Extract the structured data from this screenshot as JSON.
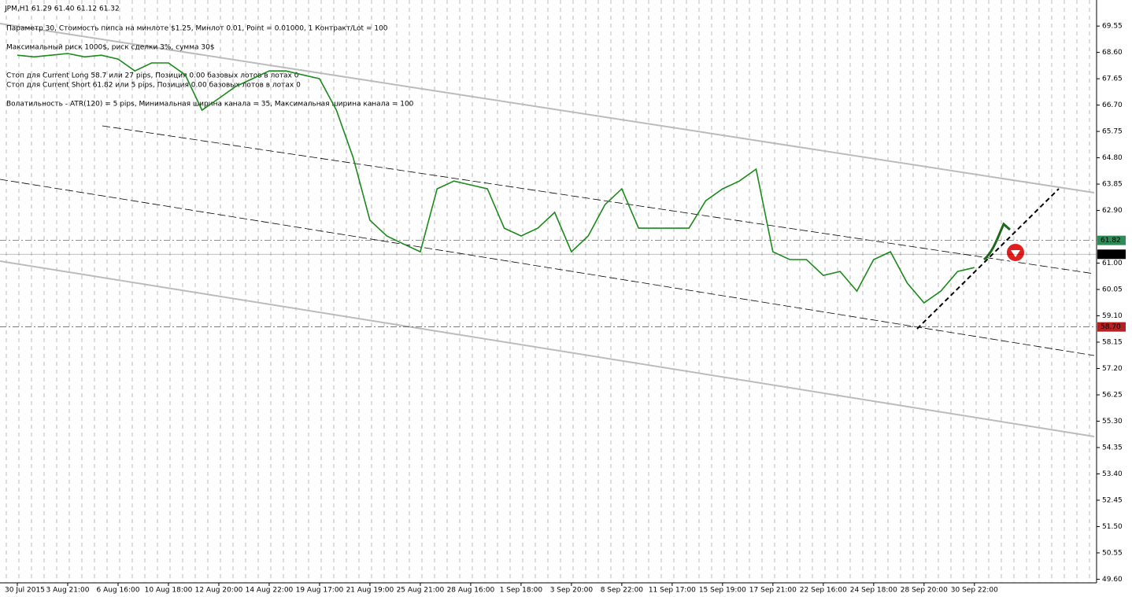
{
  "chart_data": {
    "type": "line",
    "title": "JPM,H1  61.29 61.40 61.12 61.32",
    "annotations": [
      "Параметр 30,  Стоимость пипса на минлоте  $1.25,   Минлот 0.01,  Point = 0.01000,  1 Контракт/Lot = 100",
      "Максимальный риск 1000$, риск сделки 3%, сумма 30$",
      "Стоп для Current Long  58.7 или  27 pips,  Позиция 0.00 базовых лотов в лотах 0",
      "Стоп для Current Short 61.82  или  5 pips,  Позиция 0.00 базовых лотов в лотах 0",
      "Волатильность - ATR(120) = 5 pips,  Минимальная ширина канала = 35,  Максимальная ширина канала = 100"
    ],
    "categories": [
      "30 Jul 2015",
      null,
      null,
      "3 Aug 21:00",
      null,
      null,
      "6 Aug 16:00",
      null,
      null,
      "10 Aug 18:00",
      null,
      null,
      "12 Aug 20:00",
      null,
      null,
      "14 Aug 22:00",
      null,
      null,
      "19 Aug 17:00",
      null,
      null,
      "21 Aug 19:00",
      null,
      null,
      "25 Aug 21:00",
      null,
      null,
      "28 Aug 16:00",
      null,
      null,
      "1 Sep 18:00",
      null,
      null,
      "3 Sep 20:00",
      null,
      null,
      "8 Sep 22:00",
      null,
      null,
      "11 Sep 17:00",
      null,
      null,
      "15 Sep 19:00",
      null,
      null,
      "17 Sep 21:00",
      null,
      null,
      "22 Sep 16:00",
      null,
      null,
      "24 Sep 18:00",
      null,
      null,
      "28 Sep 20:00",
      null,
      null,
      "30 Sep 22:00"
    ],
    "series": [
      {
        "name": "JPM",
        "color": "#1a8a1a",
        "values": [
          68.5,
          68.44,
          68.5,
          68.56,
          68.44,
          68.5,
          68.36,
          67.93,
          68.22,
          68.22,
          67.79,
          66.52,
          66.94,
          67.37,
          67.65,
          67.93,
          67.93,
          67.79,
          67.65,
          66.52,
          64.81,
          62.55,
          61.98,
          61.69,
          61.41,
          63.68,
          63.96,
          63.82,
          63.68,
          62.26,
          61.98,
          62.26,
          62.83,
          61.41,
          61.98,
          63.11,
          63.68,
          62.26,
          62.26,
          62.26,
          62.26,
          63.25,
          63.68,
          63.96,
          64.39,
          61.41,
          61.13,
          61.13,
          60.56,
          60.7,
          59.99,
          61.13,
          61.41,
          60.28,
          59.57,
          59.99,
          60.7,
          60.84
        ]
      }
    ],
    "ylim": [
      49.47,
      70.49
    ],
    "yticks": [
      69.55,
      {
        "value": 68.6,
        "label": "68.60"
      },
      67.65,
      {
        "value": 66.7,
        "label": "66.70"
      },
      65.75,
      {
        "value": 64.8,
        "label": "64.80"
      },
      63.85,
      {
        "value": 62.9,
        "label": "62.90"
      },
      {
        "value": 61,
        "label": "61.00"
      },
      60.05,
      {
        "value": 59.1,
        "label": "59.10"
      },
      58.15,
      {
        "value": 57.2,
        "label": "57.20"
      },
      56.25,
      {
        "value": 55.3,
        "label": "55.30"
      },
      54.35,
      {
        "value": 53.4,
        "label": "53.40"
      },
      52.45,
      {
        "value": 51.5,
        "label": "51.50"
      },
      50.55,
      {
        "value": 49.6,
        "label": "49.60"
      }
    ],
    "price_lines": [
      {
        "value": 61.82,
        "color": "#2e8b57"
      },
      {
        "value": 61.32,
        "color": "#000000"
      },
      {
        "value": 58.7,
        "label": "58.70",
        "color": "#b22222"
      }
    ]
  }
}
